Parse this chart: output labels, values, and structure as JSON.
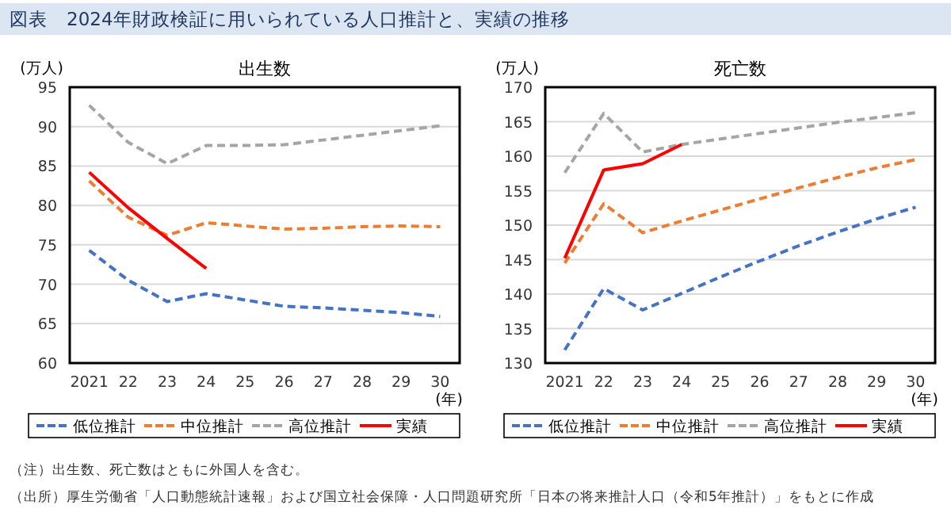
{
  "chart_data": [
    {
      "type": "other",
      "title": "図表　2024年財政検証に用いられている人口推計と、実績の推移",
      "annotations": [
        "（注）出生数、死亡数はともに外国人を含む。",
        "（出所）厚生労働省「人口動態統計速報」および国立社会保障・人口問題研究所「日本の将来推計人口（令和5年推計）」をもとに作成"
      ]
    },
    {
      "type": "line",
      "title": "出生数",
      "ylabel": "(万人)",
      "xlabel": "(年)",
      "categories": [
        "2021",
        "22",
        "23",
        "24",
        "25",
        "26",
        "27",
        "28",
        "29",
        "30"
      ],
      "ylim": [
        60,
        95
      ],
      "yticks": [
        60,
        65,
        70,
        75,
        80,
        85,
        90,
        95
      ],
      "grid": "y",
      "legend": "bottom",
      "series": [
        {
          "name": "低位推計",
          "color": "#4472c4",
          "line_style": "dashed",
          "values": [
            74.3,
            70.5,
            67.8,
            68.8,
            68.0,
            67.2,
            67.0,
            66.7,
            66.4,
            65.9
          ]
        },
        {
          "name": "中位推計",
          "color": "#ed7d31",
          "line_style": "dashed",
          "values": [
            83.1,
            78.5,
            76.2,
            77.8,
            77.4,
            77.0,
            77.1,
            77.3,
            77.4,
            77.3
          ]
        },
        {
          "name": "高位推計",
          "color": "#a5a5a5",
          "line_style": "dashed",
          "values": [
            92.7,
            88.0,
            85.3,
            87.6,
            87.6,
            87.7,
            88.3,
            88.9,
            89.5,
            90.1
          ]
        },
        {
          "name": "実績",
          "color": "#ff0000",
          "line_style": "solid",
          "values": [
            84.2,
            79.7,
            75.8,
            72.0,
            null,
            null,
            null,
            null,
            null,
            null
          ]
        }
      ]
    },
    {
      "type": "line",
      "title": "死亡数",
      "ylabel": "(万人)",
      "xlabel": "(年)",
      "categories": [
        "2021",
        "22",
        "23",
        "24",
        "25",
        "26",
        "27",
        "28",
        "29",
        "30"
      ],
      "ylim": [
        130,
        170
      ],
      "yticks": [
        130,
        135,
        140,
        145,
        150,
        155,
        160,
        165,
        170
      ],
      "grid": "y",
      "legend": "bottom",
      "series": [
        {
          "name": "低位推計",
          "color": "#4472c4",
          "line_style": "dashed",
          "values": [
            131.9,
            140.8,
            137.7,
            140.1,
            142.5,
            144.8,
            147.0,
            149.0,
            150.9,
            152.6
          ]
        },
        {
          "name": "中位推計",
          "color": "#ed7d31",
          "line_style": "dashed",
          "values": [
            144.5,
            153.1,
            148.9,
            150.6,
            152.2,
            153.8,
            155.4,
            156.9,
            158.3,
            159.5
          ]
        },
        {
          "name": "高位推計",
          "color": "#a5a5a5",
          "line_style": "dashed",
          "values": [
            157.6,
            166.2,
            160.6,
            161.7,
            162.5,
            163.3,
            164.1,
            164.9,
            165.6,
            166.3
          ]
        },
        {
          "name": "実績",
          "color": "#ff0000",
          "line_style": "solid",
          "values": [
            145.2,
            158.0,
            158.9,
            161.7,
            null,
            null,
            null,
            null,
            null,
            null
          ]
        }
      ]
    }
  ]
}
